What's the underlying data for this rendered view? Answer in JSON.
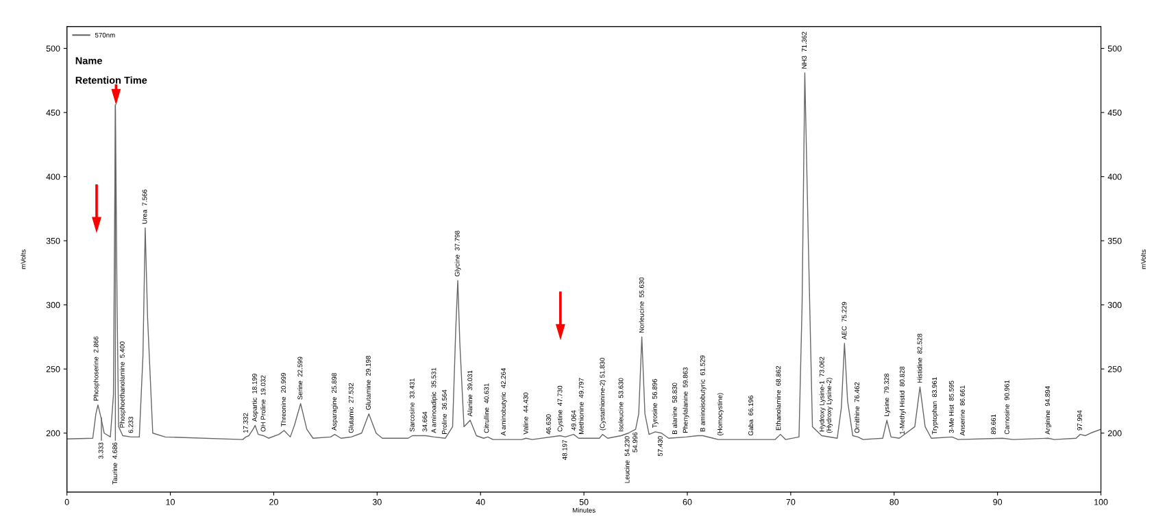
{
  "chart_data": {
    "type": "line",
    "xlabel": "Minutes",
    "ylabel": "mVolts",
    "y2label": "mVolts",
    "xlim": [
      0,
      100
    ],
    "xticks": [
      0,
      10,
      20,
      30,
      40,
      50,
      60,
      70,
      80,
      90,
      100
    ],
    "ylim": [
      154,
      517
    ],
    "yticks": [
      200,
      250,
      300,
      350,
      400,
      450,
      500
    ],
    "y2lim": [
      154,
      517
    ],
    "y2ticks": [
      200,
      250,
      300,
      350,
      400,
      450,
      500
    ],
    "grid": false,
    "legend": "top left",
    "marker": "none",
    "line_style": "solid",
    "series": [
      {
        "name": "570nm",
        "color": "#666666",
        "x": [
          0,
          2.5,
          2.8,
          3.0,
          3.3,
          3.6,
          4.2,
          4.5,
          4.686,
          4.85,
          5.0,
          5.4,
          6.2,
          7.0,
          7.35,
          7.57,
          7.8,
          8.3,
          9.5,
          17,
          17.3,
          17.6,
          18.0,
          18.2,
          18.5,
          19.0,
          19.5,
          20.5,
          21.0,
          21.6,
          22.0,
          22.6,
          23.2,
          23.8,
          25.5,
          25.9,
          26.5,
          27.5,
          28.5,
          29.2,
          29.9,
          30.5,
          33.0,
          33.4,
          34.7,
          35.5,
          36.6,
          37.3,
          37.6,
          37.8,
          38.0,
          38.4,
          39.0,
          39.6,
          40.3,
          40.7,
          41.2,
          44.0,
          44.4,
          45,
          47.7,
          48.2,
          49.0,
          49.5,
          51.5,
          51.8,
          52.3,
          53.6,
          54.3,
          55.0,
          55.3,
          55.6,
          55.9,
          56.3,
          56.9,
          57.5,
          58.2,
          59.9,
          61.0,
          61.5,
          62.5,
          63,
          68.5,
          69,
          69.5,
          70.8,
          71.1,
          71.362,
          71.7,
          72.1,
          73.0,
          74.5,
          74.9,
          75.2,
          75.5,
          76.0,
          76.5,
          77,
          78.9,
          79.3,
          79.7,
          80.5,
          82.0,
          82.5,
          83.0,
          83.6,
          85.6,
          86.2,
          90.5,
          91.5,
          94.9,
          95.5,
          97.6,
          98.0,
          98.5,
          99.0,
          100
        ],
        "values": [
          195.5,
          196,
          215,
          222,
          212,
          200,
          197,
          230,
          456,
          300,
          205,
          198,
          197,
          197,
          260,
          360,
          290,
          200,
          197,
          195,
          197,
          198,
          203,
          206,
          199,
          198,
          196,
          199,
          202,
          197,
          206,
          223,
          203,
          196,
          197,
          199,
          196,
          197,
          200,
          215,
          200,
          196,
          196,
          198,
          198,
          197,
          196,
          205,
          280,
          319,
          270,
          205,
          210,
          198,
          196,
          197,
          195,
          195,
          196,
          195,
          198,
          197,
          199,
          196,
          196,
          199,
          196,
          198,
          200,
          203,
          215,
          275,
          215,
          199,
          201,
          200,
          196,
          197,
          198,
          198,
          196,
          195,
          195,
          199,
          195,
          197,
          300,
          481,
          350,
          205,
          198,
          196,
          220,
          270,
          225,
          198,
          197,
          195,
          196,
          210,
          197,
          196,
          205,
          236,
          205,
          196,
          197,
          195,
          196,
          195,
          196,
          195,
          196,
          199,
          198,
          200,
          203
        ]
      }
    ],
    "annotations": [
      "Name",
      "Retention Time",
      {
        "text": "3.333",
        "x": 3.333,
        "y": 212
      },
      {
        "text": "Phosphoserine  2.866",
        "x": 2.866,
        "y": 222
      },
      {
        "text": "Taurine  4.686",
        "x": 4.686,
        "y": 456
      },
      {
        "text": "Phosphoethanolamine  5.400",
        "x": 5.4,
        "y": 198
      },
      {
        "text": "6.233",
        "x": 6.233,
        "y": 197
      },
      {
        "text": "Urea  7.566",
        "x": 7.566,
        "y": 360
      },
      {
        "text": "17.332",
        "x": 17.332,
        "y": 197
      },
      {
        "text": "Aspartic  18.199",
        "x": 18.199,
        "y": 206
      },
      {
        "text": "OH Proline  19.032",
        "x": 19.032,
        "y": 198
      },
      {
        "text": "Threonine  20.999",
        "x": 20.999,
        "y": 202
      },
      {
        "text": "Serine  22.599",
        "x": 22.599,
        "y": 223
      },
      {
        "text": "Asparagine  25.898",
        "x": 25.898,
        "y": 199
      },
      {
        "text": "Glutamic  27.532",
        "x": 27.532,
        "y": 197
      },
      {
        "text": "Glutamine  29.198",
        "x": 29.198,
        "y": 215
      },
      {
        "text": "Sarcosine  33.431",
        "x": 33.431,
        "y": 198
      },
      {
        "text": "34.664",
        "x": 34.664,
        "y": 198
      },
      {
        "text": "A aminoadipic  35.531",
        "x": 35.531,
        "y": 197
      },
      {
        "text": "Proline  36.564",
        "x": 36.564,
        "y": 196
      },
      {
        "text": "Glycine  37.798",
        "x": 37.798,
        "y": 319
      },
      {
        "text": "Alanine  39.031",
        "x": 39.031,
        "y": 210
      },
      {
        "text": "Citrulline  40.631",
        "x": 40.631,
        "y": 197
      },
      {
        "text": "A aminobutyric  42.264",
        "x": 42.264,
        "y": 195
      },
      {
        "text": "Valine  44.430",
        "x": 44.43,
        "y": 196
      },
      {
        "text": "46.630",
        "x": 46.63,
        "y": 196
      },
      {
        "text": "Cystine  47.730",
        "x": 47.73,
        "y": 198
      },
      {
        "text": "48.197",
        "x": 48.197,
        "y": 197
      },
      {
        "text": "49.064",
        "x": 49.064,
        "y": 199
      },
      {
        "text": "Methionine  49.797",
        "x": 49.797,
        "y": 196
      },
      {
        "text": "(Cystathionine-2) 51.830",
        "x": 51.83,
        "y": 199
      },
      {
        "text": "Isoleucine  53.630",
        "x": 53.63,
        "y": 198
      },
      {
        "text": "Leucine  54.230",
        "x": 54.23,
        "y": 200
      },
      {
        "text": "54.996",
        "x": 54.996,
        "y": 203
      },
      {
        "text": "Norleucine  55.630",
        "x": 55.63,
        "y": 275
      },
      {
        "text": "Tyrosine  56.896",
        "x": 56.896,
        "y": 201
      },
      {
        "text": "57.430",
        "x": 57.43,
        "y": 200
      },
      {
        "text": "B alanine  58.830",
        "x": 58.83,
        "y": 196
      },
      {
        "text": "Phenylalanine  59.863",
        "x": 59.863,
        "y": 197
      },
      {
        "text": "B aminoisobutyric  61.529",
        "x": 61.529,
        "y": 198
      },
      {
        "text": "(Homocystine)",
        "x": 63.2,
        "y": 195
      },
      {
        "text": "Gaba  66.196",
        "x": 66.196,
        "y": 195
      },
      {
        "text": "Ethanolamine  68.862",
        "x": 68.862,
        "y": 199
      },
      {
        "text": "NH3  71.362",
        "x": 71.362,
        "y": 481
      },
      {
        "text": "Hydroxy Lysine-1  73.062",
        "x": 73.062,
        "y": 198
      },
      {
        "text": "(Hydroxy Lysine-2)",
        "x": 73.75,
        "y": 197
      },
      {
        "text": "AEC  75.229",
        "x": 75.229,
        "y": 270
      },
      {
        "text": "Ornithine  76.462",
        "x": 76.462,
        "y": 197
      },
      {
        "text": "Lysine  79.328",
        "x": 79.328,
        "y": 210
      },
      {
        "text": "1-Methyl Histid  80.828",
        "x": 80.828,
        "y": 196
      },
      {
        "text": "Histidine  82.528",
        "x": 82.528,
        "y": 236
      },
      {
        "text": "Tryptophan  83.961",
        "x": 83.961,
        "y": 196
      },
      {
        "text": "3-Me Hist  85.595",
        "x": 85.595,
        "y": 197
      },
      {
        "text": "Anserine  86.661",
        "x": 86.661,
        "y": 195
      },
      {
        "text": "89.661",
        "x": 89.661,
        "y": 196
      },
      {
        "text": "Carnosine  90.961",
        "x": 90.961,
        "y": 196
      },
      {
        "text": "Arginine  94.894",
        "x": 94.894,
        "y": 196
      },
      {
        "text": "97.994",
        "x": 97.994,
        "y": 199
      }
    ]
  }
}
